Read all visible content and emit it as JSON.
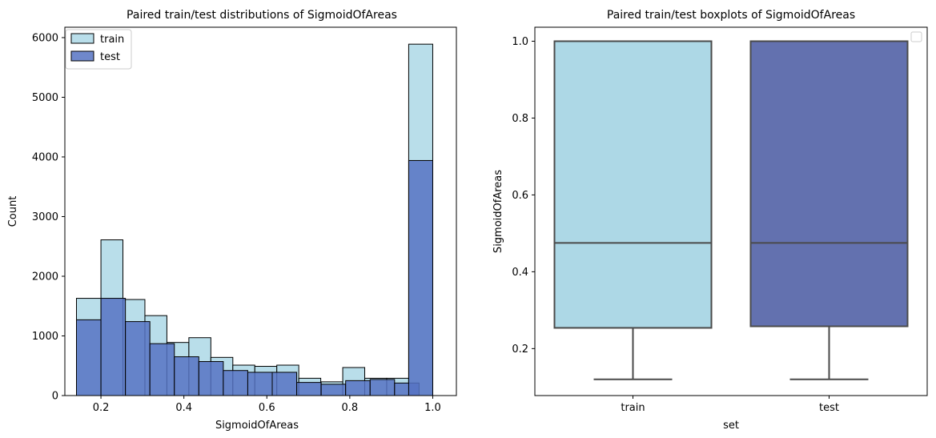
{
  "chart_data": [
    {
      "type": "histogram",
      "title": "Paired train/test distributions of SigmoidOfAreas",
      "xlabel": "SigmoidOfAreas",
      "ylabel": "Count",
      "xlim": [
        0.113,
        1.057
      ],
      "ylim": [
        0,
        6174
      ],
      "xticks": [
        0.2,
        0.4,
        0.6,
        0.8,
        1.0
      ],
      "xtick_labels": [
        "0.2",
        "0.4",
        "0.6",
        "0.8",
        "1.0"
      ],
      "yticks": [
        0,
        1000,
        2000,
        3000,
        4000,
        5000,
        6000
      ],
      "ytick_labels": [
        "0",
        "1000",
        "2000",
        "3000",
        "4000",
        "5000",
        "6000"
      ],
      "bin_edges": [
        0.141,
        0.2,
        0.259,
        0.318,
        0.377,
        0.436,
        0.495,
        0.554,
        0.613,
        0.672,
        0.731,
        0.79,
        0.849,
        0.908,
        0.967,
        1.0
      ],
      "bin_groups": [
        [
          [
            0.141,
            0.2
          ],
          [
            0.2,
            0.259
          ],
          [
            0.259,
            0.318
          ],
          [
            0.318,
            0.377
          ],
          [
            0.377,
            0.426
          ],
          [
            0.426,
            0.475
          ],
          [
            0.475,
            0.524
          ],
          [
            0.524,
            0.573
          ],
          [
            0.573,
            0.622
          ],
          [
            0.622,
            0.671
          ],
          [
            0.671,
            0.72
          ],
          [
            0.72,
            0.769
          ],
          [
            0.769,
            0.818
          ],
          [
            0.818,
            0.867
          ],
          [
            0.867,
            0.916
          ],
          [
            0.916,
            0.965
          ],
          [
            0.949,
            1.0
          ]
        ],
        [
          [
            0.141,
            0.197
          ],
          [
            0.197,
            0.253
          ],
          [
            0.253,
            0.309
          ],
          [
            0.309,
            0.365
          ],
          [
            0.365,
            0.421
          ],
          [
            0.421,
            0.477
          ],
          [
            0.477,
            0.533
          ],
          [
            0.533,
            0.589
          ],
          [
            0.589,
            0.645
          ],
          [
            0.645,
            0.701
          ],
          [
            0.701,
            0.757
          ],
          [
            0.757,
            0.813
          ],
          [
            0.813,
            0.869
          ],
          [
            0.869,
            0.925
          ],
          [
            0.925,
            0.981
          ],
          [
            0.949,
            1.0
          ]
        ]
      ],
      "series": [
        {
          "name": "train",
          "color": "#add8e6",
          "bins": [
            [
              0.141,
              0.2
            ],
            [
              0.2,
              0.253
            ],
            [
              0.253,
              0.306
            ],
            [
              0.306,
              0.359
            ],
            [
              0.359,
              0.412
            ],
            [
              0.412,
              0.465
            ],
            [
              0.465,
              0.518
            ],
            [
              0.518,
              0.571
            ],
            [
              0.571,
              0.624
            ],
            [
              0.624,
              0.677
            ],
            [
              0.677,
              0.73
            ],
            [
              0.73,
              0.783
            ],
            [
              0.783,
              0.836
            ],
            [
              0.836,
              0.889
            ],
            [
              0.889,
              0.942
            ],
            [
              0.942,
              1.0
            ]
          ],
          "values": [
            1630,
            2610,
            1610,
            1340,
            890,
            970,
            640,
            510,
            490,
            510,
            290,
            230,
            470,
            290,
            290,
            5890
          ]
        },
        {
          "name": "test",
          "color": "#5673c3",
          "bins": [
            [
              0.141,
              0.2
            ],
            [
              0.2,
              0.259
            ],
            [
              0.259,
              0.318
            ],
            [
              0.318,
              0.377
            ],
            [
              0.377,
              0.436
            ],
            [
              0.436,
              0.495
            ],
            [
              0.495,
              0.554
            ],
            [
              0.554,
              0.613
            ],
            [
              0.613,
              0.672
            ],
            [
              0.672,
              0.731
            ],
            [
              0.731,
              0.79
            ],
            [
              0.79,
              0.849
            ],
            [
              0.849,
              0.908
            ],
            [
              0.908,
              0.967
            ],
            [
              0.942,
              1.0
            ]
          ],
          "values": [
            1270,
            1630,
            1240,
            870,
            650,
            570,
            420,
            390,
            390,
            220,
            190,
            250,
            270,
            210,
            3940
          ]
        }
      ],
      "legend": {
        "location": "upper-left",
        "entries": [
          "train",
          "test"
        ]
      },
      "grid": false
    },
    {
      "type": "boxplot",
      "title": "Paired train/test boxplots of SigmoidOfAreas",
      "xlabel": "set",
      "ylabel": "SigmoidOfAreas",
      "categories": [
        "train",
        "test"
      ],
      "ylim": [
        0.0778,
        1.0364
      ],
      "yticks": [
        0.2,
        0.4,
        0.6,
        0.8,
        1.0
      ],
      "ytick_labels": [
        "0.2",
        "0.4",
        "0.6",
        "0.8",
        "1.0"
      ],
      "boxes": [
        {
          "category": "train",
          "color": "#add8e6",
          "whisker_low": 0.12,
          "q1": 0.254,
          "median": 0.475,
          "q3": 1.0,
          "whisker_high": 1.0
        },
        {
          "category": "test",
          "color": "#6371af",
          "whisker_low": 0.12,
          "q1": 0.258,
          "median": 0.475,
          "q3": 1.0,
          "whisker_high": 1.0
        }
      ],
      "legend": {
        "location": "upper-right",
        "entries": []
      },
      "grid": false
    }
  ]
}
